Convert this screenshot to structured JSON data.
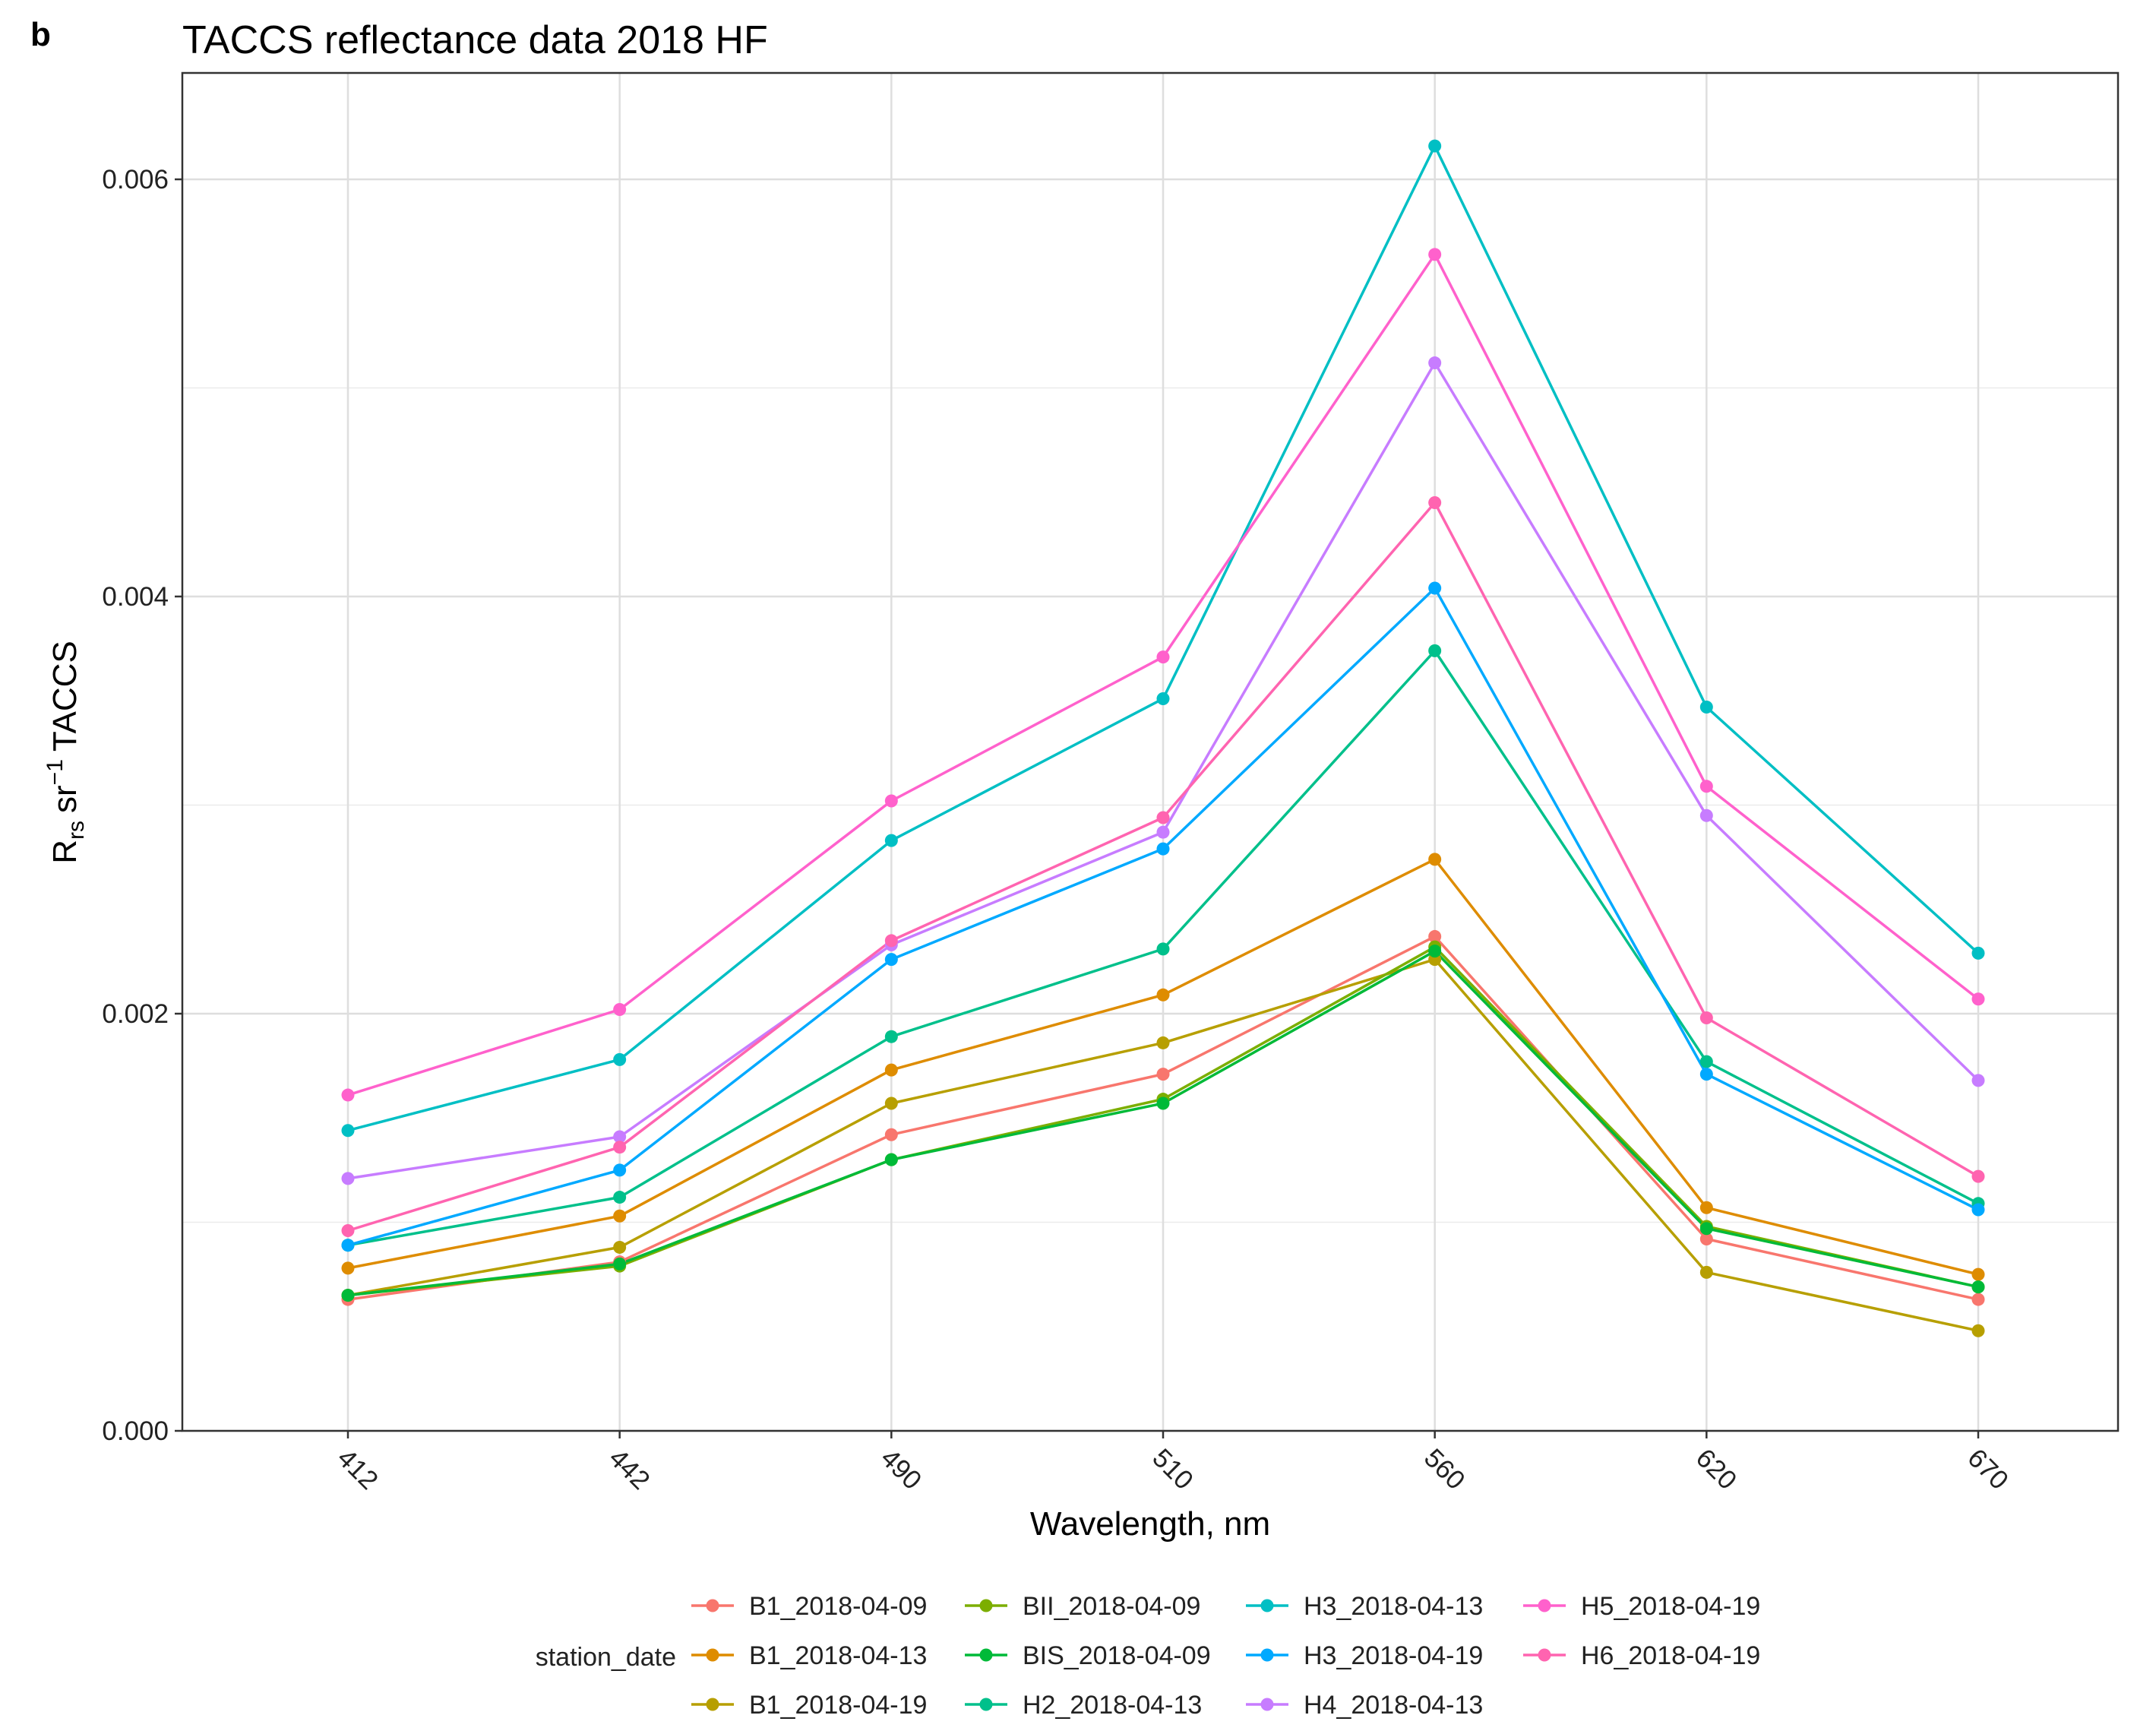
{
  "panel_label": "b",
  "chart_data": {
    "type": "line",
    "title": "TACCS reflectance data 2018 HF",
    "xlabel": "Wavelength, nm",
    "ylabel": {
      "base": "R",
      "sub": "rs",
      "unit": "sr",
      "sup": "−1",
      "suffix": "TACCS"
    },
    "categories": [
      "412",
      "442",
      "490",
      "510",
      "560",
      "620",
      "670"
    ],
    "ylim": [
      0,
      0.0065
    ],
    "yticks": [
      0,
      0.002,
      0.004,
      0.006
    ],
    "ytick_labels": [
      "0.000",
      "0.002",
      "0.004",
      "0.006"
    ],
    "grid": true,
    "legend": {
      "title": "station_date",
      "position": "bottom",
      "columns": 4
    },
    "series": [
      {
        "name": "B1_2018-04-09",
        "color": "#F8766D",
        "values": [
          0.00063,
          0.00081,
          0.00142,
          0.00171,
          0.00237,
          0.00092,
          0.00063
        ]
      },
      {
        "name": "B1_2018-04-13",
        "color": "#DE8C00",
        "values": [
          0.00078,
          0.00103,
          0.00173,
          0.00209,
          0.00274,
          0.00107,
          0.00075
        ]
      },
      {
        "name": "B1_2018-04-19",
        "color": "#B79F00",
        "values": [
          0.00065,
          0.00088,
          0.00157,
          0.00186,
          0.00226,
          0.00076,
          0.00048
        ]
      },
      {
        "name": "BII_2018-04-09",
        "color": "#7CAE00",
        "values": [
          0.00065,
          0.00079,
          0.0013,
          0.00159,
          0.00232,
          0.00098,
          0.00069
        ]
      },
      {
        "name": "BIS_2018-04-09",
        "color": "#00BA38",
        "values": [
          0.00065,
          0.0008,
          0.0013,
          0.00157,
          0.0023,
          0.00097,
          0.00069
        ]
      },
      {
        "name": "H2_2018-04-13",
        "color": "#00C08B",
        "values": [
          0.00089,
          0.00112,
          0.00189,
          0.00231,
          0.00374,
          0.00177,
          0.00109
        ]
      },
      {
        "name": "H3_2018-04-13",
        "color": "#00BFC4",
        "values": [
          0.00144,
          0.00178,
          0.00283,
          0.00351,
          0.00616,
          0.00347,
          0.00229
        ]
      },
      {
        "name": "H3_2018-04-19",
        "color": "#00A9FF",
        "values": [
          0.00089,
          0.00125,
          0.00226,
          0.00279,
          0.00404,
          0.00171,
          0.00106
        ]
      },
      {
        "name": "H4_2018-04-13",
        "color": "#C77CFF",
        "values": [
          0.00121,
          0.00141,
          0.00233,
          0.00287,
          0.00512,
          0.00295,
          0.00168
        ]
      },
      {
        "name": "H5_2018-04-19",
        "color": "#FF61CC",
        "values": [
          0.00161,
          0.00202,
          0.00302,
          0.00371,
          0.00564,
          0.00309,
          0.00207
        ]
      },
      {
        "name": "H6_2018-04-19",
        "color": "#FF64B0",
        "values": [
          0.00096,
          0.00136,
          0.00235,
          0.00294,
          0.00445,
          0.00198,
          0.00122
        ]
      }
    ]
  }
}
